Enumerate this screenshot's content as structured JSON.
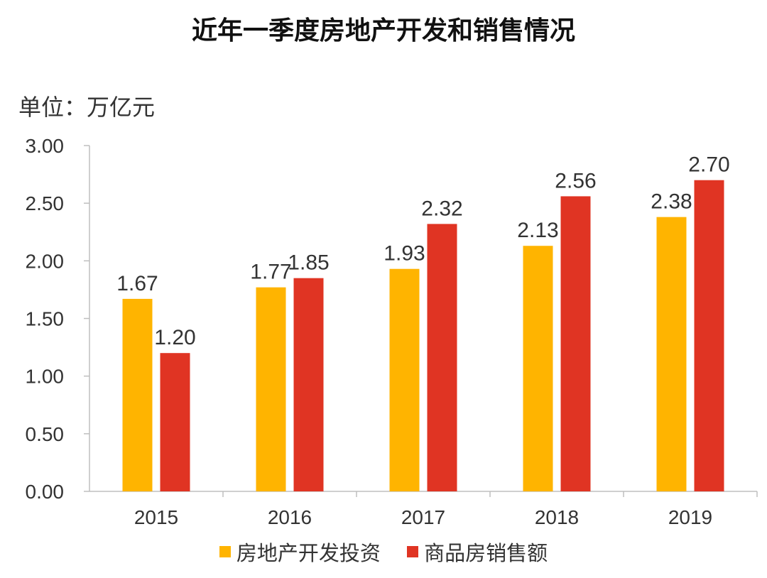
{
  "chart_data": {
    "type": "bar",
    "title": "近年一季度房地产开发和销售情况",
    "unit_label": "单位：万亿元",
    "categories": [
      "2015",
      "2016",
      "2017",
      "2018",
      "2019"
    ],
    "series": [
      {
        "name": "房地产开发投资",
        "color": "#FFB400",
        "values": [
          1.67,
          1.77,
          1.93,
          2.13,
          2.38
        ]
      },
      {
        "name": "商品房销售额",
        "color": "#E03423",
        "values": [
          1.2,
          1.85,
          2.32,
          2.56,
          2.7
        ]
      }
    ],
    "ylim": [
      0,
      3
    ],
    "yticks": [
      0,
      0.5,
      1.0,
      1.5,
      2.0,
      2.5,
      3.0
    ],
    "ytick_labels": [
      "0.00",
      "0.50",
      "1.00",
      "1.50",
      "2.00",
      "2.50",
      "3.00"
    ],
    "data_labels": [
      [
        "1.67",
        "1.77",
        "1.93",
        "2.13",
        "2.38"
      ],
      [
        "1.20",
        "1.85",
        "2.32",
        "2.56",
        "2.70"
      ]
    ],
    "grid": false,
    "legend_position": "bottom"
  }
}
